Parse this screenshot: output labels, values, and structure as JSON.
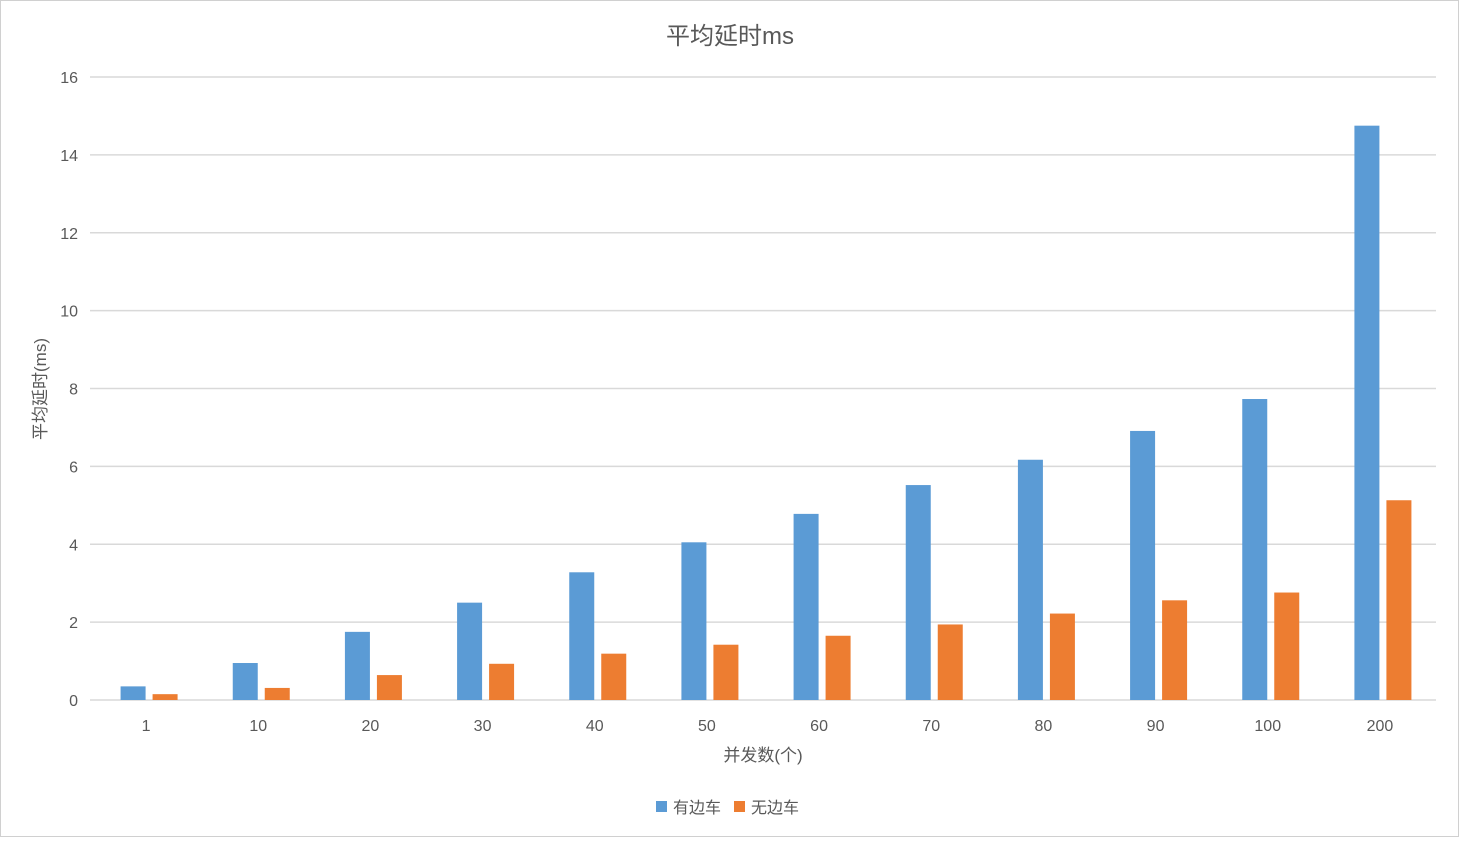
{
  "chart_data": {
    "type": "bar",
    "title": "平均延时ms",
    "xlabel": "并发数(个)",
    "ylabel": "平均延时(ms)",
    "categories": [
      "1",
      "10",
      "20",
      "30",
      "40",
      "50",
      "60",
      "70",
      "80",
      "90",
      "100",
      "200"
    ],
    "series": [
      {
        "name": "有边车",
        "color": "#5B9BD5",
        "values": [
          0.35,
          0.95,
          1.75,
          2.5,
          3.28,
          4.05,
          4.78,
          5.52,
          6.17,
          6.91,
          7.73,
          14.75
        ]
      },
      {
        "name": "无边车",
        "color": "#ED7D31",
        "values": [
          0.15,
          0.31,
          0.64,
          0.93,
          1.19,
          1.42,
          1.65,
          1.94,
          2.22,
          2.56,
          2.76,
          5.13
        ]
      }
    ],
    "ylim": [
      0,
      16
    ],
    "yticks": [
      0,
      2,
      4,
      6,
      8,
      10,
      12,
      14,
      16
    ],
    "grid": true,
    "legend": "bottom"
  }
}
